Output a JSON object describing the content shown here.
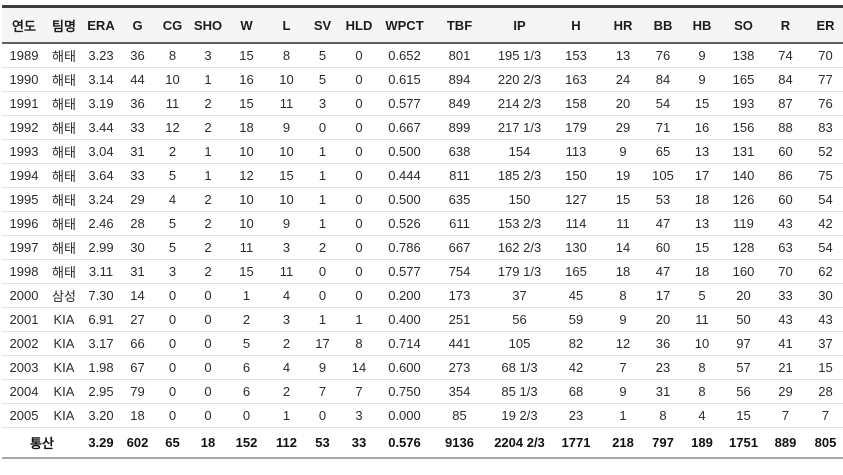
{
  "table": {
    "columns": [
      "연도",
      "팀명",
      "ERA",
      "G",
      "CG",
      "SHO",
      "W",
      "L",
      "SV",
      "HLD",
      "WPCT",
      "TBF",
      "IP",
      "H",
      "HR",
      "BB",
      "HB",
      "SO",
      "R",
      "ER"
    ],
    "rows": [
      [
        "1989",
        "해태",
        "3.23",
        "36",
        "8",
        "3",
        "15",
        "8",
        "5",
        "0",
        "0.652",
        "801",
        "195 1/3",
        "153",
        "13",
        "76",
        "9",
        "138",
        "74",
        "70"
      ],
      [
        "1990",
        "해태",
        "3.14",
        "44",
        "10",
        "1",
        "16",
        "10",
        "5",
        "0",
        "0.615",
        "894",
        "220 2/3",
        "163",
        "24",
        "84",
        "9",
        "165",
        "84",
        "77"
      ],
      [
        "1991",
        "해태",
        "3.19",
        "36",
        "11",
        "2",
        "15",
        "11",
        "3",
        "0",
        "0.577",
        "849",
        "214 2/3",
        "158",
        "20",
        "54",
        "15",
        "193",
        "87",
        "76"
      ],
      [
        "1992",
        "해태",
        "3.44",
        "33",
        "12",
        "2",
        "18",
        "9",
        "0",
        "0",
        "0.667",
        "899",
        "217 1/3",
        "179",
        "29",
        "71",
        "16",
        "156",
        "88",
        "83"
      ],
      [
        "1993",
        "해태",
        "3.04",
        "31",
        "2",
        "1",
        "10",
        "10",
        "1",
        "0",
        "0.500",
        "638",
        "154",
        "113",
        "9",
        "65",
        "13",
        "131",
        "60",
        "52"
      ],
      [
        "1994",
        "해태",
        "3.64",
        "33",
        "5",
        "1",
        "12",
        "15",
        "1",
        "0",
        "0.444",
        "811",
        "185 2/3",
        "150",
        "19",
        "105",
        "17",
        "140",
        "86",
        "75"
      ],
      [
        "1995",
        "해태",
        "3.24",
        "29",
        "4",
        "2",
        "10",
        "10",
        "1",
        "0",
        "0.500",
        "635",
        "150",
        "127",
        "15",
        "53",
        "18",
        "126",
        "60",
        "54"
      ],
      [
        "1996",
        "해태",
        "2.46",
        "28",
        "5",
        "2",
        "10",
        "9",
        "1",
        "0",
        "0.526",
        "611",
        "153 2/3",
        "114",
        "11",
        "47",
        "13",
        "119",
        "43",
        "42"
      ],
      [
        "1997",
        "해태",
        "2.99",
        "30",
        "5",
        "2",
        "11",
        "3",
        "2",
        "0",
        "0.786",
        "667",
        "162 2/3",
        "130",
        "14",
        "60",
        "15",
        "128",
        "63",
        "54"
      ],
      [
        "1998",
        "해태",
        "3.11",
        "31",
        "3",
        "2",
        "15",
        "11",
        "0",
        "0",
        "0.577",
        "754",
        "179 1/3",
        "165",
        "18",
        "47",
        "18",
        "160",
        "70",
        "62"
      ],
      [
        "2000",
        "삼성",
        "7.30",
        "14",
        "0",
        "0",
        "1",
        "4",
        "0",
        "0",
        "0.200",
        "173",
        "37",
        "45",
        "8",
        "17",
        "5",
        "20",
        "33",
        "30"
      ],
      [
        "2001",
        "KIA",
        "6.91",
        "27",
        "0",
        "0",
        "2",
        "3",
        "1",
        "1",
        "0.400",
        "251",
        "56",
        "59",
        "9",
        "20",
        "11",
        "50",
        "43",
        "43"
      ],
      [
        "2002",
        "KIA",
        "3.17",
        "66",
        "0",
        "0",
        "5",
        "2",
        "17",
        "8",
        "0.714",
        "441",
        "105",
        "82",
        "12",
        "36",
        "10",
        "97",
        "41",
        "37"
      ],
      [
        "2003",
        "KIA",
        "1.98",
        "67",
        "0",
        "0",
        "6",
        "4",
        "9",
        "14",
        "0.600",
        "273",
        "68 1/3",
        "42",
        "7",
        "23",
        "8",
        "57",
        "21",
        "15"
      ],
      [
        "2004",
        "KIA",
        "2.95",
        "79",
        "0",
        "0",
        "6",
        "2",
        "7",
        "7",
        "0.750",
        "354",
        "85 1/3",
        "68",
        "9",
        "31",
        "8",
        "56",
        "29",
        "28"
      ],
      [
        "2005",
        "KIA",
        "3.20",
        "18",
        "0",
        "0",
        "0",
        "1",
        "0",
        "3",
        "0.000",
        "85",
        "19 2/3",
        "23",
        "1",
        "8",
        "4",
        "15",
        "7",
        "7"
      ]
    ],
    "total": {
      "label": "통산",
      "values": [
        "3.29",
        "602",
        "65",
        "18",
        "152",
        "112",
        "53",
        "33",
        "0.576",
        "9136",
        "2204 2/3",
        "1771",
        "218",
        "797",
        "189",
        "1751",
        "889",
        "805"
      ]
    }
  },
  "colors": {
    "header_background": "#f5f5f5",
    "top_border": "#3d3d3d",
    "row_divider": "#e2e2e2",
    "text": "#2b2b2b"
  }
}
